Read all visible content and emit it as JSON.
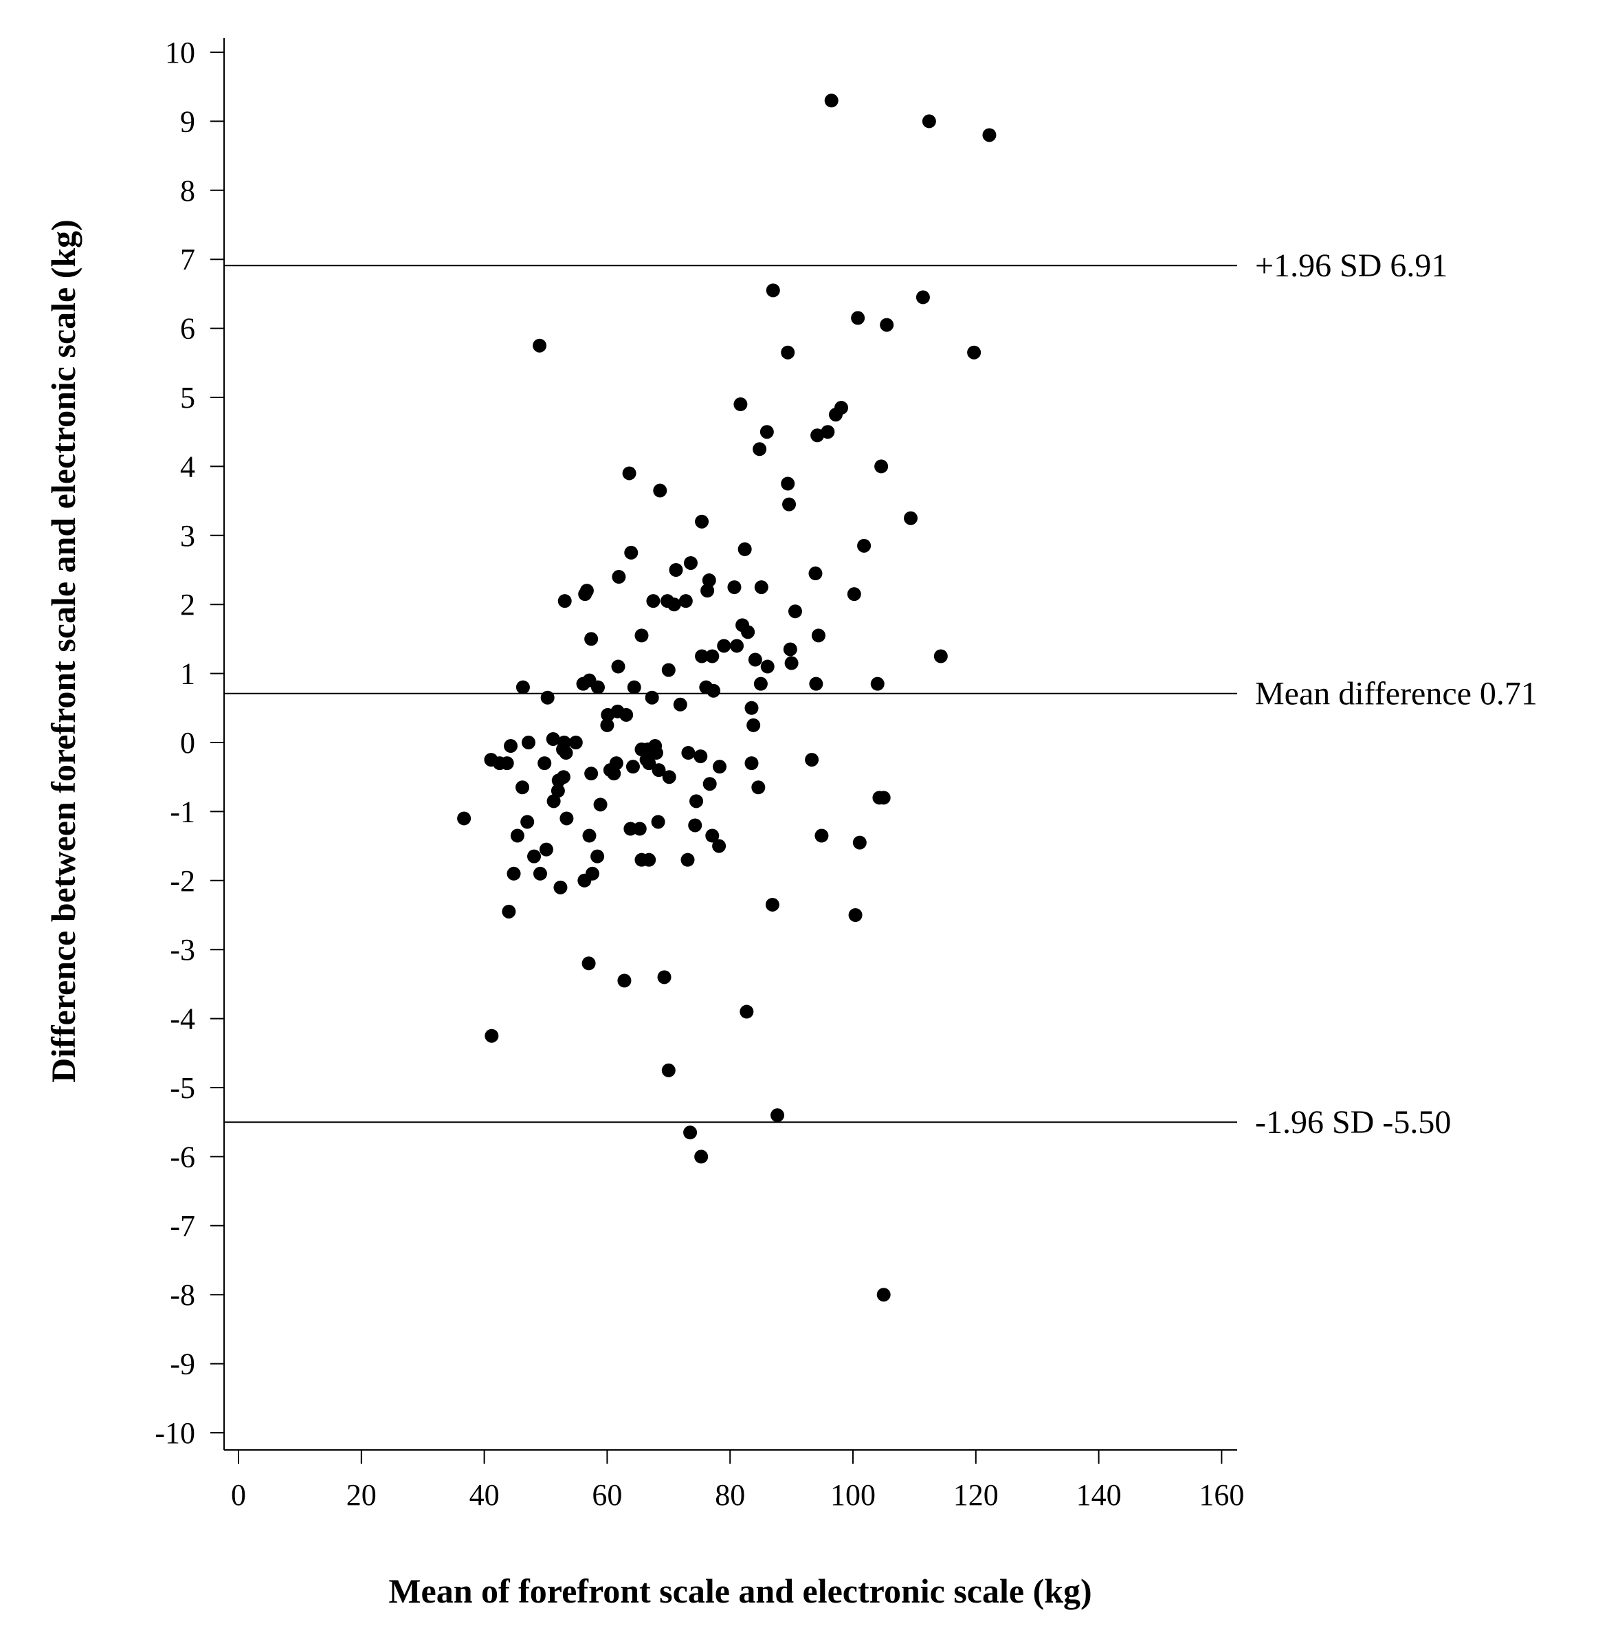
{
  "chart_data": {
    "type": "scatter",
    "title": "",
    "xlabel": "Mean of forefront scale and electronic scale (kg)",
    "ylabel": "Difference between forefront scale and electronic scale (kg)",
    "xlim": [
      -2.5,
      162
    ],
    "ylim": [
      -10.25,
      10.2
    ],
    "x_ticks": [
      "0",
      "20",
      "40",
      "60",
      "80",
      "100",
      "120",
      "140",
      "160"
    ],
    "y_ticks": [
      "10",
      "9",
      "8",
      "7",
      "6",
      "5",
      "4",
      "3",
      "2",
      "1",
      "0",
      "-1",
      "-2",
      "-3",
      "-4",
      "-5",
      "-6",
      "-7",
      "-8",
      "-9",
      "-10"
    ],
    "grid": false,
    "marker_color": "#000000",
    "reference_lines": [
      {
        "label": "+1.96 SD 6.91",
        "y": 6.91
      },
      {
        "label": "Mean difference 0.71",
        "y": 0.71
      },
      {
        "label": "-1.96 SD -5.50",
        "y": -5.5
      }
    ],
    "points": [
      [
        96.5,
        9.3
      ],
      [
        112.4,
        9.0
      ],
      [
        122.2,
        8.8
      ],
      [
        87.0,
        6.55
      ],
      [
        111.4,
        6.45
      ],
      [
        100.8,
        6.15
      ],
      [
        105.5,
        6.05
      ],
      [
        49.0,
        5.75
      ],
      [
        89.4,
        5.65
      ],
      [
        119.7,
        5.65
      ],
      [
        81.7,
        4.9
      ],
      [
        98.1,
        4.85
      ],
      [
        97.2,
        4.75
      ],
      [
        86.0,
        4.5
      ],
      [
        95.9,
        4.5
      ],
      [
        94.2,
        4.45
      ],
      [
        84.8,
        4.25
      ],
      [
        63.6,
        3.9
      ],
      [
        104.6,
        4.0
      ],
      [
        68.6,
        3.65
      ],
      [
        89.4,
        3.75
      ],
      [
        89.6,
        3.45
      ],
      [
        75.4,
        3.2
      ],
      [
        109.4,
        3.25
      ],
      [
        63.9,
        2.75
      ],
      [
        82.4,
        2.8
      ],
      [
        101.8,
        2.85
      ],
      [
        73.6,
        2.6
      ],
      [
        71.2,
        2.5
      ],
      [
        61.9,
        2.4
      ],
      [
        76.6,
        2.35
      ],
      [
        93.9,
        2.45
      ],
      [
        56.7,
        2.2
      ],
      [
        56.4,
        2.15
      ],
      [
        76.3,
        2.2
      ],
      [
        80.7,
        2.25
      ],
      [
        85.1,
        2.25
      ],
      [
        53.1,
        2.05
      ],
      [
        67.5,
        2.05
      ],
      [
        69.8,
        2.05
      ],
      [
        72.8,
        2.05
      ],
      [
        70.9,
        2.0
      ],
      [
        100.2,
        2.15
      ],
      [
        90.6,
        1.9
      ],
      [
        82.0,
        1.7
      ],
      [
        82.9,
        1.6
      ],
      [
        57.4,
        1.5
      ],
      [
        65.6,
        1.55
      ],
      [
        94.4,
        1.55
      ],
      [
        79.0,
        1.4
      ],
      [
        81.1,
        1.4
      ],
      [
        75.4,
        1.25
      ],
      [
        77.1,
        1.25
      ],
      [
        89.8,
        1.35
      ],
      [
        84.1,
        1.2
      ],
      [
        114.3,
        1.25
      ],
      [
        61.8,
        1.1
      ],
      [
        70.0,
        1.05
      ],
      [
        86.1,
        1.1
      ],
      [
        90.0,
        1.15
      ],
      [
        56.1,
        0.85
      ],
      [
        57.1,
        0.9
      ],
      [
        58.5,
        0.8
      ],
      [
        46.3,
        0.8
      ],
      [
        64.4,
        0.8
      ],
      [
        76.1,
        0.8
      ],
      [
        77.3,
        0.75
      ],
      [
        85.0,
        0.85
      ],
      [
        94.0,
        0.85
      ],
      [
        104.0,
        0.85
      ],
      [
        50.3,
        0.65
      ],
      [
        67.3,
        0.65
      ],
      [
        71.9,
        0.55
      ],
      [
        83.5,
        0.5
      ],
      [
        61.7,
        0.45
      ],
      [
        60.1,
        0.4
      ],
      [
        63.1,
        0.4
      ],
      [
        60.0,
        0.25
      ],
      [
        83.8,
        0.25
      ],
      [
        51.2,
        0.05
      ],
      [
        53.0,
        0.0
      ],
      [
        47.2,
        0.0
      ],
      [
        44.3,
        -0.05
      ],
      [
        54.9,
        0.0
      ],
      [
        52.8,
        -0.1
      ],
      [
        53.3,
        -0.15
      ],
      [
        41.1,
        -0.25
      ],
      [
        42.5,
        -0.3
      ],
      [
        43.7,
        -0.3
      ],
      [
        65.6,
        -0.1
      ],
      [
        66.6,
        -0.1
      ],
      [
        67.8,
        -0.05
      ],
      [
        68.0,
        -0.15
      ],
      [
        66.4,
        -0.25
      ],
      [
        73.2,
        -0.15
      ],
      [
        75.2,
        -0.2
      ],
      [
        93.3,
        -0.25
      ],
      [
        49.8,
        -0.3
      ],
      [
        61.5,
        -0.3
      ],
      [
        64.2,
        -0.35
      ],
      [
        66.8,
        -0.3
      ],
      [
        78.3,
        -0.35
      ],
      [
        83.5,
        -0.3
      ],
      [
        60.5,
        -0.4
      ],
      [
        61.1,
        -0.45
      ],
      [
        57.4,
        -0.45
      ],
      [
        68.4,
        -0.4
      ],
      [
        70.1,
        -0.5
      ],
      [
        52.9,
        -0.5
      ],
      [
        52.1,
        -0.55
      ],
      [
        76.7,
        -0.6
      ],
      [
        46.2,
        -0.65
      ],
      [
        52.0,
        -0.7
      ],
      [
        84.6,
        -0.65
      ],
      [
        51.3,
        -0.85
      ],
      [
        58.9,
        -0.9
      ],
      [
        74.5,
        -0.85
      ],
      [
        104.3,
        -0.8
      ],
      [
        105.0,
        -0.8
      ],
      [
        36.7,
        -1.1
      ],
      [
        47.0,
        -1.15
      ],
      [
        53.4,
        -1.1
      ],
      [
        68.3,
        -1.15
      ],
      [
        74.3,
        -1.2
      ],
      [
        63.8,
        -1.25
      ],
      [
        65.3,
        -1.25
      ],
      [
        77.1,
        -1.35
      ],
      [
        45.4,
        -1.35
      ],
      [
        57.1,
        -1.35
      ],
      [
        94.9,
        -1.35
      ],
      [
        101.1,
        -1.45
      ],
      [
        50.1,
        -1.55
      ],
      [
        48.1,
        -1.65
      ],
      [
        58.4,
        -1.65
      ],
      [
        78.2,
        -1.5
      ],
      [
        65.6,
        -1.7
      ],
      [
        66.8,
        -1.7
      ],
      [
        73.1,
        -1.7
      ],
      [
        44.8,
        -1.9
      ],
      [
        49.1,
        -1.9
      ],
      [
        57.6,
        -1.9
      ],
      [
        56.3,
        -2.0
      ],
      [
        52.4,
        -2.1
      ],
      [
        44.0,
        -2.45
      ],
      [
        86.9,
        -2.35
      ],
      [
        100.4,
        -2.5
      ],
      [
        57.0,
        -3.2
      ],
      [
        62.8,
        -3.45
      ],
      [
        69.3,
        -3.4
      ],
      [
        82.7,
        -3.9
      ],
      [
        41.2,
        -4.25
      ],
      [
        70.0,
        -4.75
      ],
      [
        87.7,
        -5.4
      ],
      [
        73.5,
        -5.65
      ],
      [
        75.3,
        -6.0
      ],
      [
        105.0,
        -8.0
      ]
    ]
  }
}
